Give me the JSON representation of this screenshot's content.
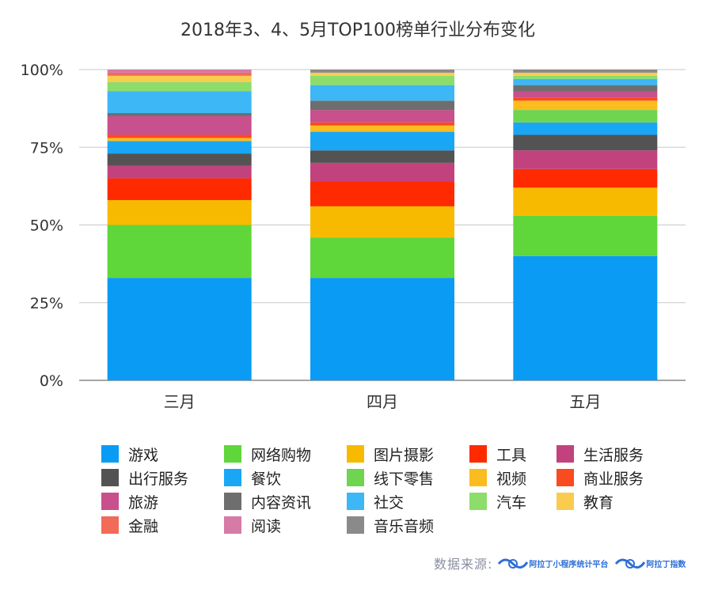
{
  "chart_data": {
    "type": "bar",
    "stacked": true,
    "title": "2018年3、4、5月TOP100榜单行业分布变化",
    "xlabel": "",
    "ylabel": "",
    "ylim": [
      0,
      100
    ],
    "yticks": [
      "0%",
      "25%",
      "50%",
      "75%",
      "100%"
    ],
    "grid": true,
    "legend_position": "bottom",
    "categories": [
      "三月",
      "四月",
      "五月"
    ],
    "series": [
      {
        "name": "游戏",
        "color": "#0A9BF5",
        "values": [
          33,
          33,
          40
        ]
      },
      {
        "name": "网络购物",
        "color": "#5FD63A",
        "values": [
          17,
          13,
          13
        ]
      },
      {
        "name": "图片摄影",
        "color": "#F8BA00",
        "values": [
          8,
          10,
          9
        ]
      },
      {
        "name": "工具",
        "color": "#FF2A00",
        "values": [
          7,
          8,
          6
        ]
      },
      {
        "name": "生活服务",
        "color": "#C2427D",
        "values": [
          4,
          6,
          6
        ]
      },
      {
        "name": "出行服务",
        "color": "#535353",
        "values": [
          4,
          4,
          5
        ]
      },
      {
        "name": "餐饮",
        "color": "#19A7F5",
        "values": [
          4,
          6,
          4
        ]
      },
      {
        "name": "线下零售",
        "color": "#6FD44F",
        "values": [
          0,
          0,
          4
        ]
      },
      {
        "name": "视频",
        "color": "#FABC1E",
        "values": [
          1,
          2,
          3
        ]
      },
      {
        "name": "商业服务",
        "color": "#FA4A20",
        "values": [
          1,
          1,
          1
        ]
      },
      {
        "name": "旅游",
        "color": "#C8508C",
        "values": [
          6,
          4,
          2
        ]
      },
      {
        "name": "内容资讯",
        "color": "#6E6E6E",
        "values": [
          1,
          3,
          2
        ]
      },
      {
        "name": "社交",
        "color": "#3DB7F5",
        "values": [
          7,
          5,
          2
        ]
      },
      {
        "name": "汽车",
        "color": "#8CDD6A",
        "values": [
          3,
          3,
          1
        ]
      },
      {
        "name": "教育",
        "color": "#F9CC50",
        "values": [
          2,
          1,
          1
        ]
      },
      {
        "name": "金融",
        "color": "#F26A58",
        "values": [
          1,
          0,
          0
        ]
      },
      {
        "name": "阅读",
        "color": "#D67AA6",
        "values": [
          1,
          0,
          0
        ]
      },
      {
        "name": "音乐音频",
        "color": "#8A8A8A",
        "values": [
          0,
          1,
          1
        ]
      }
    ]
  },
  "source": {
    "label": "数据来源:",
    "logo1": "阿拉丁小程序统计平台",
    "logo2": "阿拉丁指数"
  }
}
